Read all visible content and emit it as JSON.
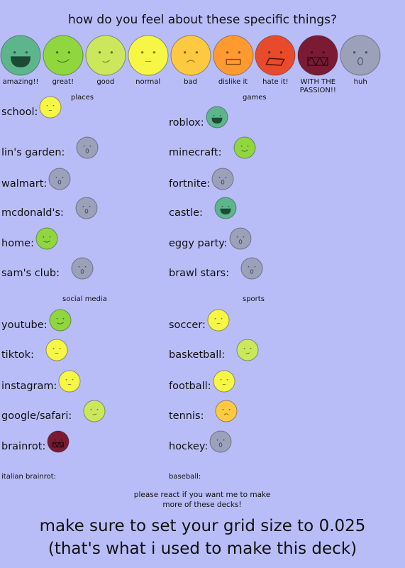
{
  "title": "how do you feel about these specific things?",
  "scale": [
    {
      "label": "amazing!!",
      "color": "#5db58c"
    },
    {
      "label": "great!",
      "color": "#8fd63f"
    },
    {
      "label": "good",
      "color": "#cbe85c"
    },
    {
      "label": "normal",
      "color": "#f6f645"
    },
    {
      "label": "bad",
      "color": "#fcc940"
    },
    {
      "label": "dislike it",
      "color": "#ff9a30"
    },
    {
      "label": "hate it!",
      "color": "#e84b2b"
    },
    {
      "label": "WITH THE PASSION!!",
      "color": "#7b1a33"
    },
    {
      "label": "huh",
      "color": "#9ba1b9"
    }
  ],
  "sections": [
    {
      "title": "places",
      "items": [
        {
          "name": "school:",
          "rating": "normal"
        },
        {
          "name": "lin's garden:",
          "rating": "huh"
        },
        {
          "name": "walmart:",
          "rating": "huh"
        },
        {
          "name": "mcdonald's:",
          "rating": "huh"
        },
        {
          "name": "home:",
          "rating": "great!"
        },
        {
          "name": "sam's club:",
          "rating": "huh"
        }
      ]
    },
    {
      "title": "games",
      "items": [
        {
          "name": "roblox:",
          "rating": "amazing!!"
        },
        {
          "name": "minecraft:",
          "rating": "great!"
        },
        {
          "name": "fortnite:",
          "rating": "huh"
        },
        {
          "name": "castle:",
          "rating": "amazing!!"
        },
        {
          "name": "eggy party:",
          "rating": "huh"
        },
        {
          "name": "brawl stars:",
          "rating": "huh"
        }
      ]
    },
    {
      "title": "social media",
      "items": [
        {
          "name": "youtube:",
          "rating": "great!"
        },
        {
          "name": "tiktok:",
          "rating": "normal"
        },
        {
          "name": "instagram:",
          "rating": "normal"
        },
        {
          "name": "google/safari:",
          "rating": "good"
        },
        {
          "name": "brainrot:",
          "rating": "WITH THE PASSION!!"
        },
        {
          "name": "italian brainrot:",
          "rating": null
        }
      ]
    },
    {
      "title": "sports",
      "items": [
        {
          "name": "soccer:",
          "rating": "normal"
        },
        {
          "name": "basketball:",
          "rating": "good"
        },
        {
          "name": "football:",
          "rating": "normal"
        },
        {
          "name": "tennis:",
          "rating": "bad"
        },
        {
          "name": "hockey:",
          "rating": "huh"
        },
        {
          "name": "baseball:",
          "rating": null
        }
      ]
    }
  ],
  "note": "please react if you want me to make more of these decks!",
  "footer": [
    "make sure to set your grid size to 0.025",
    "(that's what i used to make this deck)"
  ]
}
